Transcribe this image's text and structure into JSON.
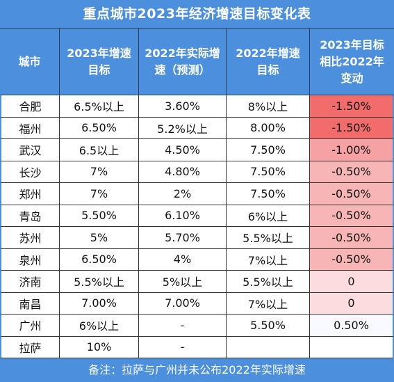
{
  "colors": {
    "header_bg": "#4b8fdd",
    "header_text": "#ffffff",
    "grid_line": "#333333"
  },
  "chart_data": {
    "type": "table",
    "title": "重点城市2023年经济增速目标变化表",
    "columns": [
      [
        "城市"
      ],
      [
        "2023年增速",
        "目标"
      ],
      [
        "2022年实际增",
        "速（预测）"
      ],
      [
        "2022年增速",
        "目标"
      ],
      [
        "2023年目标",
        "相比2022年",
        "变动"
      ]
    ],
    "rows": [
      {
        "city": "合肥",
        "target_2023": "6.5%以上",
        "actual_2022": "3.60%",
        "target_2022": "8%以上",
        "change": "-1.50%",
        "change_color": "#f36c6c"
      },
      {
        "city": "福州",
        "target_2023": "6.50%",
        "actual_2022": "5.2%以上",
        "target_2022": "8.00%",
        "change": "-1.50%",
        "change_color": "#f36c6c"
      },
      {
        "city": "武汉",
        "target_2023": "6.5以上",
        "actual_2022": "4.50%",
        "target_2022": "7.50%",
        "change": "-1.00%",
        "change_color": "#f6a2a2"
      },
      {
        "city": "长沙",
        "target_2023": "7%",
        "actual_2022": "4.80%",
        "target_2022": "7.50%",
        "change": "-0.50%",
        "change_color": "#f8b5b5"
      },
      {
        "city": "郑州",
        "target_2023": "7%",
        "actual_2022": "2%",
        "target_2022": "7.50%",
        "change": "-0.50%",
        "change_color": "#f8b5b5"
      },
      {
        "city": "青岛",
        "target_2023": "5.50%",
        "actual_2022": "6.10%",
        "target_2022": "6%以上",
        "change": "-0.50%",
        "change_color": "#f8b5b5"
      },
      {
        "city": "苏州",
        "target_2023": "5%",
        "actual_2022": "5.70%",
        "target_2022": "5.5%以上",
        "change": "-0.50%",
        "change_color": "#f8b5b5"
      },
      {
        "city": "泉州",
        "target_2023": "6.50%",
        "actual_2022": "4%",
        "target_2022": "7%以上",
        "change": "-0.50%",
        "change_color": "#f8b5b5"
      },
      {
        "city": "济南",
        "target_2023": "5.5%以上",
        "actual_2022": "5%以上",
        "target_2022": "5.5%以上",
        "change": "0",
        "change_color": "#fcdcdc"
      },
      {
        "city": "南昌",
        "target_2023": "7.00%",
        "actual_2022": "7.00%",
        "target_2022": "7%以上",
        "change": "0",
        "change_color": "#fcdcdc"
      },
      {
        "city": "广州",
        "target_2023": "6%以上",
        "actual_2022": "-",
        "target_2022": "5.50%",
        "change": "0.50%",
        "change_color": "#f8faff"
      },
      {
        "city": "拉萨",
        "target_2023": "10%",
        "actual_2022": "-",
        "target_2022": "",
        "change": "",
        "change_color": "#ffffff"
      }
    ],
    "note": "备注：拉萨与广州并未公布2022年实际增速"
  }
}
